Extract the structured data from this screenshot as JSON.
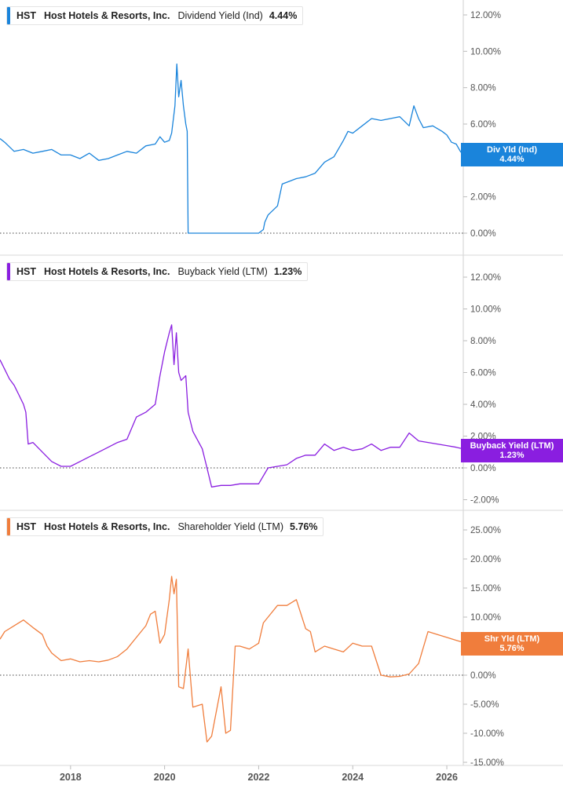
{
  "panels": [
    {
      "id": "div",
      "ticker": "HST",
      "company": "Host Hotels & Resorts, Inc.",
      "metric": "Dividend Yield (Ind)",
      "value": "4.44%",
      "color": "#1a84db",
      "tag_label": "Div Yld (Ind)",
      "tag_value": "4.44%",
      "y_ticks": [
        "12.00%",
        "10.00%",
        "8.00%",
        "6.00%",
        "4.00%",
        "2.00%",
        "0.00%"
      ]
    },
    {
      "id": "buyback",
      "ticker": "HST",
      "company": "Host Hotels & Resorts, Inc.",
      "metric": "Buyback Yield (LTM)",
      "value": "1.23%",
      "color": "#8a1ee0",
      "tag_label": "Buyback Yield (LTM)",
      "tag_value": "1.23%",
      "y_ticks": [
        "12.00%",
        "10.00%",
        "8.00%",
        "6.00%",
        "4.00%",
        "2.00%",
        "0.00%",
        "-2.00%"
      ]
    },
    {
      "id": "shareholder",
      "ticker": "HST",
      "company": "Host Hotels & Resorts, Inc.",
      "metric": "Shareholder Yield (LTM)",
      "value": "5.76%",
      "color": "#f07d3c",
      "tag_label": "Shr Yld (LTM)",
      "tag_value": "5.76%",
      "y_ticks": [
        "25.00%",
        "20.00%",
        "15.00%",
        "10.00%",
        "5.00%",
        "0.00%",
        "-5.00%",
        "-10.00%",
        "-15.00%"
      ]
    }
  ],
  "x_ticks": [
    "2018",
    "2020",
    "2022",
    "2024",
    "2026"
  ],
  "chart_data": [
    {
      "type": "line",
      "title": "HST Host Hotels & Resorts, Inc. Dividend Yield (Ind) 4.44%",
      "ylim": [
        0,
        12
      ],
      "xlim": [
        2016.5,
        2026.35
      ],
      "series": [
        {
          "name": "Dividend Yield (Ind)",
          "x": [
            2016.5,
            2016.6,
            2016.8,
            2017.0,
            2017.2,
            2017.4,
            2017.6,
            2017.8,
            2018.0,
            2018.2,
            2018.4,
            2018.6,
            2018.8,
            2019.0,
            2019.2,
            2019.4,
            2019.6,
            2019.8,
            2019.9,
            2020.0,
            2020.1,
            2020.15,
            2020.22,
            2020.26,
            2020.3,
            2020.35,
            2020.4,
            2020.45,
            2020.48,
            2020.5,
            2020.6,
            2021.0,
            2021.5,
            2022.0,
            2022.1,
            2022.13,
            2022.2,
            2022.4,
            2022.5,
            2022.6,
            2022.8,
            2023.0,
            2023.2,
            2023.4,
            2023.6,
            2023.8,
            2023.9,
            2024.0,
            2024.2,
            2024.4,
            2024.6,
            2024.8,
            2025.0,
            2025.2,
            2025.3,
            2025.4,
            2025.5,
            2025.7,
            2025.9,
            2026.0,
            2026.1,
            2026.2,
            2026.3
          ],
          "values": [
            5.2,
            5.0,
            4.5,
            4.6,
            4.4,
            4.5,
            4.6,
            4.3,
            4.3,
            4.1,
            4.4,
            4.0,
            4.1,
            4.3,
            4.5,
            4.4,
            4.8,
            4.9,
            5.3,
            5.0,
            5.1,
            5.5,
            7.0,
            9.3,
            7.5,
            8.4,
            7.0,
            6.0,
            5.6,
            0.0,
            0.0,
            0.0,
            0.0,
            0.0,
            0.2,
            0.6,
            1.0,
            1.5,
            2.7,
            2.8,
            3.0,
            3.1,
            3.3,
            3.9,
            4.2,
            5.1,
            5.6,
            5.5,
            5.9,
            6.3,
            6.2,
            6.3,
            6.4,
            5.9,
            7.0,
            6.3,
            5.8,
            5.9,
            5.6,
            5.4,
            5.0,
            4.9,
            4.44
          ]
        }
      ]
    },
    {
      "type": "line",
      "title": "HST Host Hotels & Resorts, Inc. Buyback Yield (LTM) 1.23%",
      "ylim": [
        -2,
        12
      ],
      "xlim": [
        2016.5,
        2026.35
      ],
      "series": [
        {
          "name": "Buyback Yield (LTM)",
          "x": [
            2016.5,
            2016.6,
            2016.7,
            2016.8,
            2016.9,
            2017.0,
            2017.05,
            2017.1,
            2017.2,
            2017.3,
            2017.4,
            2017.6,
            2017.8,
            2018.0,
            2018.2,
            2018.4,
            2018.6,
            2018.8,
            2019.0,
            2019.2,
            2019.4,
            2019.6,
            2019.8,
            2019.9,
            2020.0,
            2020.1,
            2020.15,
            2020.2,
            2020.25,
            2020.3,
            2020.35,
            2020.45,
            2020.5,
            2020.6,
            2020.8,
            2020.9,
            2021.0,
            2021.2,
            2021.4,
            2021.6,
            2021.8,
            2022.0,
            2022.2,
            2022.4,
            2022.6,
            2022.8,
            2023.0,
            2023.2,
            2023.4,
            2023.6,
            2023.8,
            2024.0,
            2024.2,
            2024.4,
            2024.6,
            2024.8,
            2025.0,
            2025.2,
            2025.4,
            2025.6,
            2025.8,
            2026.0,
            2026.2,
            2026.3
          ],
          "values": [
            6.8,
            6.2,
            5.6,
            5.2,
            4.6,
            4.0,
            3.5,
            1.5,
            1.6,
            1.3,
            1.0,
            0.4,
            0.1,
            0.1,
            0.4,
            0.7,
            1.0,
            1.3,
            1.6,
            1.8,
            3.2,
            3.5,
            4.0,
            5.8,
            7.3,
            8.5,
            9.0,
            6.5,
            8.5,
            6.0,
            5.5,
            5.8,
            3.5,
            2.3,
            1.2,
            0.0,
            -1.2,
            -1.1,
            -1.1,
            -1.0,
            -1.0,
            -1.0,
            0.0,
            0.1,
            0.2,
            0.6,
            0.8,
            0.8,
            1.5,
            1.1,
            1.3,
            1.1,
            1.2,
            1.5,
            1.1,
            1.3,
            1.3,
            2.2,
            1.7,
            1.6,
            1.5,
            1.4,
            1.3,
            1.23
          ]
        }
      ]
    },
    {
      "type": "line",
      "title": "HST Host Hotels & Resorts, Inc. Shareholder Yield (LTM) 5.76%",
      "ylim": [
        -15,
        25
      ],
      "xlim": [
        2016.5,
        2026.35
      ],
      "series": [
        {
          "name": "Shareholder Yield (LTM)",
          "x": [
            2016.5,
            2016.6,
            2016.8,
            2017.0,
            2017.2,
            2017.4,
            2017.5,
            2017.6,
            2017.8,
            2018.0,
            2018.2,
            2018.4,
            2018.6,
            2018.8,
            2019.0,
            2019.2,
            2019.4,
            2019.6,
            2019.7,
            2019.8,
            2019.9,
            2020.0,
            2020.1,
            2020.15,
            2020.2,
            2020.25,
            2020.3,
            2020.4,
            2020.5,
            2020.6,
            2020.8,
            2020.9,
            2021.0,
            2021.2,
            2021.3,
            2021.4,
            2021.5,
            2021.6,
            2021.8,
            2021.9,
            2022.0,
            2022.1,
            2022.2,
            2022.4,
            2022.6,
            2022.8,
            2023.0,
            2023.1,
            2023.2,
            2023.4,
            2023.6,
            2023.8,
            2024.0,
            2024.2,
            2024.4,
            2024.6,
            2024.8,
            2025.0,
            2025.2,
            2025.4,
            2025.6,
            2025.8,
            2026.0,
            2026.2,
            2026.3
          ],
          "values": [
            6.2,
            7.5,
            8.5,
            9.5,
            8.2,
            7.0,
            5.0,
            3.8,
            2.5,
            2.8,
            2.3,
            2.5,
            2.3,
            2.6,
            3.2,
            4.5,
            6.5,
            8.5,
            10.5,
            11.0,
            5.5,
            7.0,
            13.0,
            17.0,
            14.0,
            16.5,
            -2.0,
            -2.3,
            4.5,
            -5.5,
            -5.0,
            -11.5,
            -10.5,
            -2.0,
            -10.0,
            -9.5,
            5.0,
            5.0,
            4.5,
            5.0,
            5.5,
            9.0,
            10.0,
            12.0,
            12.0,
            13.0,
            8.0,
            7.5,
            4.0,
            5.0,
            4.5,
            4.0,
            5.5,
            5.0,
            5.0,
            0.0,
            -0.3,
            -0.2,
            0.2,
            2.0,
            7.5,
            7.0,
            6.5,
            6.0,
            5.76
          ]
        }
      ]
    }
  ]
}
